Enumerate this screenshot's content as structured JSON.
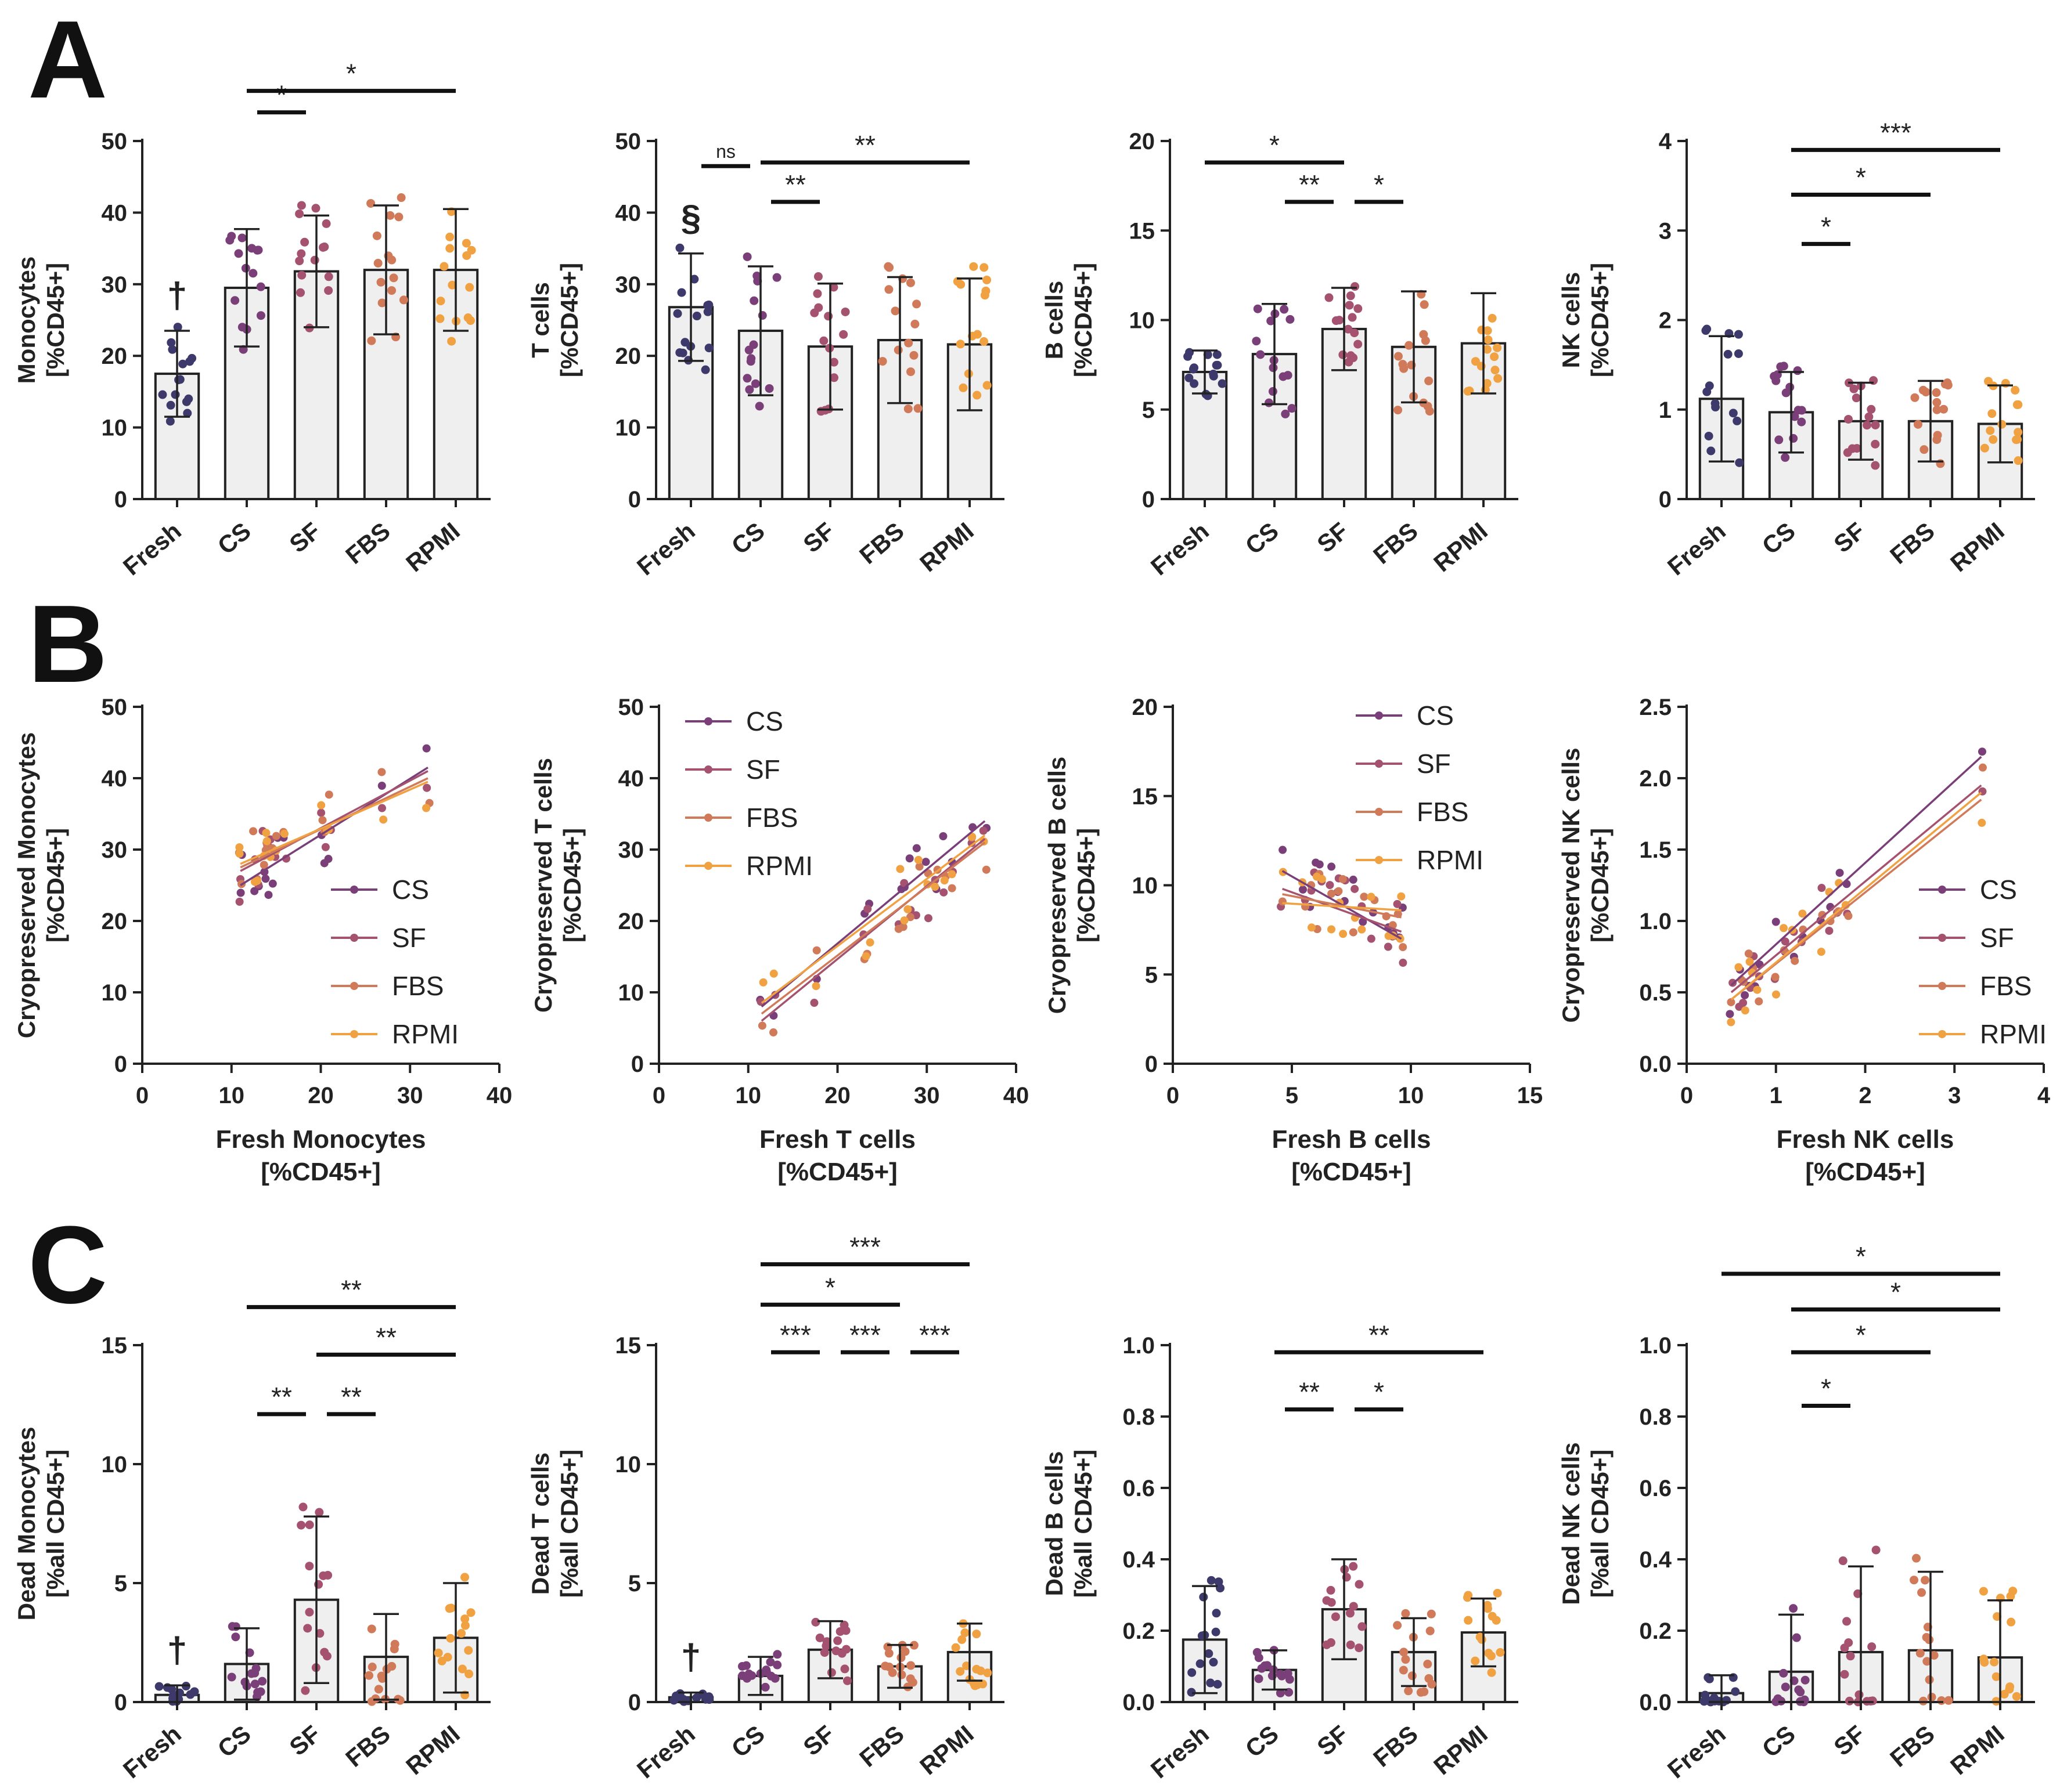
{
  "figure": {
    "panel_letters": [
      "A",
      "B",
      "C"
    ],
    "colors": {
      "Fresh": "#3d3a6b",
      "CS": "#7a3f78",
      "SF": "#a4526f",
      "FBS": "#d07a5a",
      "RPMI": "#f0a142",
      "bar_fill": "#efefef",
      "ink": "#222222"
    }
  },
  "chart_data": [
    {
      "id": "A1",
      "type": "bar",
      "ylabel": "Monocytes\n[%CD45+]",
      "categories": [
        "Fresh",
        "CS",
        "SF",
        "FBS",
        "RPMI"
      ],
      "values": [
        17.5,
        29.5,
        31.8,
        32.0,
        32.0
      ],
      "errors": [
        6,
        8.2,
        7.8,
        9,
        8.5
      ],
      "ylim": [
        0,
        50
      ],
      "yticks": [
        0,
        10,
        20,
        30,
        40,
        50
      ],
      "yticklabels": [
        "0",
        "10",
        "20",
        "30",
        "40",
        "50"
      ],
      "marks": [
        {
          "cat": 0,
          "text": "†"
        }
      ],
      "sig": [
        {
          "from": 1,
          "to": 2,
          "y": 54,
          "label": "*"
        },
        {
          "from": 1,
          "to": 4,
          "y": 57,
          "label": "*"
        }
      ]
    },
    {
      "id": "A2",
      "type": "bar",
      "ylabel": "T cells\n[%CD45+]",
      "categories": [
        "Fresh",
        "CS",
        "SF",
        "FBS",
        "RPMI"
      ],
      "values": [
        26.8,
        23.5,
        21.3,
        22.2,
        21.6
      ],
      "errors": [
        7.5,
        9,
        8.8,
        8.8,
        9.2
      ],
      "ylim": [
        0,
        50
      ],
      "yticks": [
        0,
        10,
        20,
        30,
        40,
        50
      ],
      "yticklabels": [
        "0",
        "10",
        "20",
        "30",
        "40",
        "50"
      ],
      "marks": [
        {
          "cat": 0,
          "text": "§"
        }
      ],
      "sig": [
        {
          "from": 0,
          "to": 1,
          "y": 46.5,
          "label": "ns"
        },
        {
          "from": 1,
          "to": 2,
          "y": 41.5,
          "label": "**"
        },
        {
          "from": 1,
          "to": 4,
          "y": 47,
          "label": "**"
        }
      ]
    },
    {
      "id": "A3",
      "type": "bar",
      "ylabel": "B cells\n[%CD45+]",
      "categories": [
        "Fresh",
        "CS",
        "SF",
        "FBS",
        "RPMI"
      ],
      "values": [
        7.1,
        8.1,
        9.5,
        8.5,
        8.7
      ],
      "errors": [
        1.2,
        2.8,
        2.3,
        3.1,
        2.8
      ],
      "ylim": [
        0,
        20
      ],
      "yticks": [
        0,
        5,
        10,
        15,
        20
      ],
      "yticklabels": [
        "0",
        "5",
        "10",
        "15",
        "20"
      ],
      "marks": [],
      "sig": [
        {
          "from": 0,
          "to": 2,
          "y": 18.8,
          "label": "*"
        },
        {
          "from": 1,
          "to": 2,
          "y": 16.6,
          "label": "**"
        },
        {
          "from": 2,
          "to": 3,
          "y": 16.6,
          "label": "*"
        }
      ]
    },
    {
      "id": "A4",
      "type": "bar",
      "ylabel": "NK cells\n[%CD45+]",
      "categories": [
        "Fresh",
        "CS",
        "SF",
        "FBS",
        "RPMI"
      ],
      "values": [
        1.12,
        0.97,
        0.87,
        0.87,
        0.84
      ],
      "errors": [
        0.7,
        0.45,
        0.43,
        0.45,
        0.43
      ],
      "ylim": [
        0,
        4
      ],
      "yticks": [
        0,
        1,
        2,
        3,
        4
      ],
      "yticklabels": [
        "0",
        "1",
        "2",
        "3",
        "4"
      ],
      "marks": [],
      "sig": [
        {
          "from": 1,
          "to": 4,
          "y": 3.9,
          "label": "***"
        },
        {
          "from": 1,
          "to": 3,
          "y": 3.4,
          "label": "*"
        },
        {
          "from": 1,
          "to": 2,
          "y": 2.85,
          "label": "*"
        }
      ]
    },
    {
      "id": "B1",
      "type": "scatter",
      "xlabel": "Fresh Monocytes\n[%CD45+]",
      "ylabel": "Cryopreserved Monocytes\n[%CD45+]",
      "xlim": [
        0,
        40
      ],
      "ylim": [
        0,
        50
      ],
      "xticks": [
        0,
        10,
        20,
        30,
        40
      ],
      "yticks": [
        0,
        10,
        20,
        30,
        40,
        50
      ],
      "xticklabels": [
        "0",
        "10",
        "20",
        "30",
        "40"
      ],
      "yticklabels": [
        "0",
        "10",
        "20",
        "30",
        "40",
        "50"
      ],
      "legend": [
        "CS",
        "SF",
        "FBS",
        "RPMI"
      ],
      "legend_position": "bottom-right",
      "points_x": [
        11,
        11,
        12.5,
        13,
        13.5,
        14,
        14,
        14.5,
        15,
        16,
        20,
        20.5,
        21,
        27,
        32
      ],
      "lines": [
        [
          11,
          25,
          32,
          41.5
        ],
        [
          11,
          27,
          32,
          41
        ],
        [
          11,
          27.5,
          32,
          40
        ],
        [
          11,
          28,
          32,
          39.5
        ]
      ]
    },
    {
      "id": "B2",
      "type": "scatter",
      "xlabel": "Fresh T cells\n[%CD45+]",
      "ylabel": "Cryopreserved T cells\n[%CD45+]",
      "xlim": [
        0,
        40
      ],
      "ylim": [
        0,
        50
      ],
      "xticks": [
        0,
        10,
        20,
        30,
        40
      ],
      "yticks": [
        0,
        10,
        20,
        30,
        40,
        50
      ],
      "xticklabels": [
        "0",
        "10",
        "20",
        "30",
        "40"
      ],
      "yticklabels": [
        "0",
        "10",
        "20",
        "30",
        "40",
        "50"
      ],
      "legend": [
        "CS",
        "SF",
        "FBS",
        "RPMI"
      ],
      "legend_position": "top-left",
      "points_x": [
        11.5,
        13,
        17.5,
        23,
        23.5,
        27,
        27.5,
        28,
        29,
        30,
        31,
        32,
        33,
        35,
        36.5
      ],
      "lines": [
        [
          11.5,
          8,
          36.5,
          34
        ],
        [
          11.5,
          6,
          36.5,
          31.5
        ],
        [
          11.5,
          7,
          36.5,
          31
        ],
        [
          11.5,
          8.5,
          36.5,
          32
        ]
      ]
    },
    {
      "id": "B3",
      "type": "scatter",
      "xlabel": "Fresh B cells\n[%CD45+]",
      "ylabel": "Cryopreserved B cells\n[%CD45+]",
      "xlim": [
        0,
        15
      ],
      "ylim": [
        0,
        20
      ],
      "xticks": [
        0,
        5,
        10,
        15
      ],
      "yticks": [
        0,
        5,
        10,
        15,
        20
      ],
      "xticklabels": [
        "0",
        "5",
        "10",
        "15"
      ],
      "yticklabels": [
        "0",
        "5",
        "10",
        "15",
        "20"
      ],
      "legend": [
        "CS",
        "SF",
        "FBS",
        "RPMI"
      ],
      "legend_position": "top-right",
      "points_x": [
        4.6,
        5.5,
        5.8,
        6,
        6.2,
        6.6,
        7,
        7.2,
        7.6,
        8,
        8.4,
        9,
        9.2,
        9.5,
        9.6
      ],
      "lines": [
        [
          4.6,
          10.8,
          9.6,
          7.0
        ],
        [
          4.6,
          9.8,
          9.6,
          7.4
        ],
        [
          4.6,
          9.5,
          9.6,
          8.2
        ],
        [
          4.6,
          9.0,
          9.6,
          8.6
        ]
      ]
    },
    {
      "id": "B4",
      "type": "scatter",
      "xlabel": "Fresh NK cells\n[%CD45+]",
      "ylabel": "Cryopreserved NK cells\n[%CD45+]",
      "xlim": [
        0,
        4
      ],
      "ylim": [
        0,
        2.5
      ],
      "xticks": [
        0,
        1,
        2,
        3,
        4
      ],
      "yticks": [
        0,
        0.5,
        1,
        1.5,
        2,
        2.5
      ],
      "xticklabels": [
        "0",
        "1",
        "2",
        "3",
        "4"
      ],
      "yticklabels": [
        "0.0",
        "0.5",
        "1.0",
        "1.5",
        "2.0",
        "2.5"
      ],
      "legend": [
        "CS",
        "SF",
        "FBS",
        "RPMI"
      ],
      "legend_position": "bottom-right",
      "points_x": [
        0.5,
        0.6,
        0.65,
        0.7,
        0.75,
        0.8,
        1.0,
        1.1,
        1.2,
        1.3,
        1.5,
        1.6,
        1.7,
        1.8,
        3.3
      ],
      "lines": [
        [
          0.5,
          0.55,
          3.3,
          2.15
        ],
        [
          0.5,
          0.5,
          3.3,
          1.95
        ],
        [
          0.5,
          0.45,
          3.3,
          1.85
        ],
        [
          0.5,
          0.45,
          3.3,
          1.9
        ]
      ]
    },
    {
      "id": "C1",
      "type": "bar",
      "ylabel": "Dead  Monocytes\n[%all CD45+]",
      "categories": [
        "Fresh",
        "CS",
        "SF",
        "FBS",
        "RPMI"
      ],
      "values": [
        0.3,
        1.6,
        4.3,
        1.9,
        2.7
      ],
      "errors": [
        0.4,
        1.5,
        3.5,
        1.8,
        2.3
      ],
      "ylim": [
        0,
        15
      ],
      "yticks": [
        0,
        5,
        10,
        15
      ],
      "yticklabels": [
        "0",
        "5",
        "10",
        "15"
      ],
      "marks": [
        {
          "cat": 0,
          "text": "†"
        }
      ],
      "sig": [
        {
          "from": 1,
          "to": 2,
          "y": 12.1,
          "label": "**"
        },
        {
          "from": 2,
          "to": 3,
          "y": 12.1,
          "label": "**"
        },
        {
          "from": 2,
          "to": 4,
          "y": 14.6,
          "label": "**"
        },
        {
          "from": 1,
          "to": 4,
          "y": 16.6,
          "label": "**"
        }
      ]
    },
    {
      "id": "C2",
      "type": "bar",
      "ylabel": "Dead T cells\n[%all CD45+]",
      "categories": [
        "Fresh",
        "CS",
        "SF",
        "FBS",
        "RPMI"
      ],
      "values": [
        0.2,
        1.1,
        2.2,
        1.5,
        2.1
      ],
      "errors": [
        0.2,
        0.8,
        1.2,
        0.9,
        1.2
      ],
      "ylim": [
        0,
        15
      ],
      "yticks": [
        0,
        5,
        10,
        15
      ],
      "yticklabels": [
        "0",
        "5",
        "10",
        "15"
      ],
      "marks": [
        {
          "cat": 0,
          "text": "†"
        }
      ],
      "sig": [
        {
          "from": 1,
          "to": 2,
          "y": 14.7,
          "label": "***"
        },
        {
          "from": 2,
          "to": 3,
          "y": 14.7,
          "label": "***"
        },
        {
          "from": 3,
          "to": 4,
          "y": 14.7,
          "label": "***"
        },
        {
          "from": 1,
          "to": 3,
          "y": 16.7,
          "label": "*"
        },
        {
          "from": 1,
          "to": 4,
          "y": 18.4,
          "label": "***"
        }
      ]
    },
    {
      "id": "C3",
      "type": "bar",
      "ylabel": "Dead B cells\n[%all CD45+]",
      "categories": [
        "Fresh",
        "CS",
        "SF",
        "FBS",
        "RPMI"
      ],
      "values": [
        0.175,
        0.09,
        0.26,
        0.14,
        0.195
      ],
      "errors": [
        0.15,
        0.055,
        0.14,
        0.095,
        0.095
      ],
      "ylim": [
        0,
        1.0
      ],
      "yticks": [
        0,
        0.2,
        0.4,
        0.6,
        0.8,
        1.0
      ],
      "yticklabels": [
        "0.0",
        "0.2",
        "0.4",
        "0.6",
        "0.8",
        "1.0"
      ],
      "marks": [],
      "sig": [
        {
          "from": 1,
          "to": 2,
          "y": 0.82,
          "label": "**"
        },
        {
          "from": 2,
          "to": 3,
          "y": 0.82,
          "label": "*"
        },
        {
          "from": 1,
          "to": 4,
          "y": 0.98,
          "label": "**"
        }
      ]
    },
    {
      "id": "C4",
      "type": "bar",
      "ylabel": "Dead NK cells\n[%all  CD45+]",
      "categories": [
        "Fresh",
        "CS",
        "SF",
        "FBS",
        "RPMI"
      ],
      "values": [
        0.025,
        0.085,
        0.14,
        0.145,
        0.125
      ],
      "errors": [
        0.05,
        0.16,
        0.24,
        0.22,
        0.16
      ],
      "ylim": [
        0,
        1.0
      ],
      "yticks": [
        0,
        0.2,
        0.4,
        0.6,
        0.8,
        1.0
      ],
      "yticklabels": [
        "0.0",
        "0.2",
        "0.4",
        "0.6",
        "0.8",
        "1.0"
      ],
      "marks": [],
      "sig": [
        {
          "from": 1,
          "to": 2,
          "y": 0.83,
          "label": "*"
        },
        {
          "from": 1,
          "to": 3,
          "y": 0.98,
          "label": "*"
        },
        {
          "from": 1,
          "to": 4,
          "y": 1.1,
          "label": "*"
        },
        {
          "from": 0,
          "to": 4,
          "y": 1.2,
          "label": "*"
        }
      ]
    }
  ]
}
